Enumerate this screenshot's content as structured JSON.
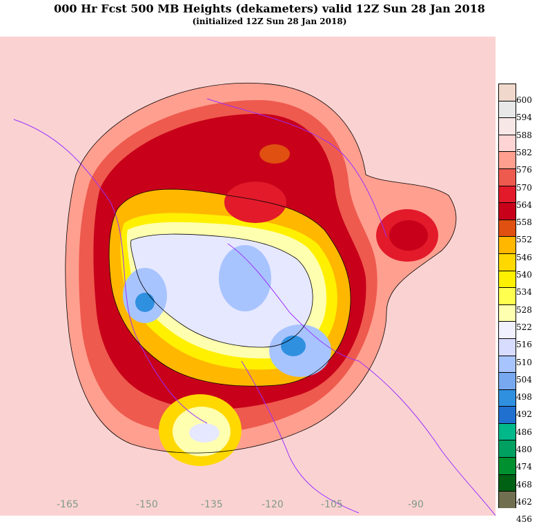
{
  "header": {
    "title": "000 Hr Fcst 500 MB Heights (dekameters) valid 12Z Sun 28 Jan 2018",
    "subtitle": "(initialized 12Z Sun 28 Jan 2018)"
  },
  "colorbar": {
    "levels": [
      "600",
      "594",
      "588",
      "582",
      "576",
      "570",
      "564",
      "558",
      "552",
      "546",
      "540",
      "534",
      "528",
      "522",
      "516",
      "510",
      "504",
      "498",
      "492",
      "486",
      "480",
      "474",
      "468",
      "462",
      "456"
    ],
    "colors": [
      "#f0d8cc",
      "#e8e8e8",
      "#f7e7e7",
      "#ffd4d4",
      "#ff9f8f",
      "#ee5a4e",
      "#e21a2a",
      "#c8001a",
      "#e05010",
      "#ffb700",
      "#ffd800",
      "#fff000",
      "#ffff50",
      "#ffffb0",
      "#f0f0ff",
      "#d8dcff",
      "#a8c4ff",
      "#78a8f0",
      "#3090e0",
      "#2070d0",
      "#00b88a",
      "#00a060",
      "#009030",
      "#006014",
      "#707050"
    ]
  },
  "longitude_labels": [
    "-165",
    "-150",
    "-135",
    "-120",
    "-105",
    "-90"
  ]
}
